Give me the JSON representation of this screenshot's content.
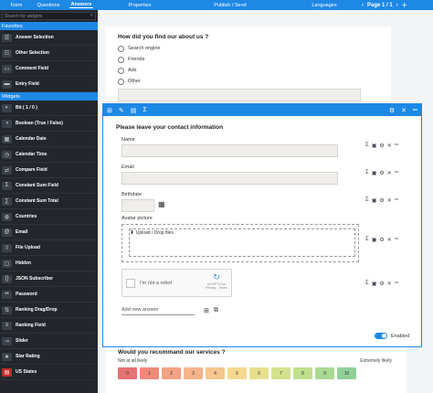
{
  "topnav": {
    "tabs": [
      "Form",
      "Questions",
      "Answers",
      "Properties",
      "Publish / Send",
      "Languages"
    ],
    "active": "Answers",
    "page_label": "Page 1 / 1"
  },
  "sidebar": {
    "search_placeholder": "Search for widgets",
    "favorites_label": "Favorites",
    "favorites": [
      {
        "label": "Answer Selection",
        "icon": "answer-selection-icon"
      },
      {
        "label": "Other Selection",
        "icon": "other-selection-icon"
      },
      {
        "label": "Comment Field",
        "icon": "comment-field-icon"
      },
      {
        "label": "Entry Field",
        "icon": "entry-field-icon"
      }
    ],
    "widgets_label": "Widgets",
    "widgets": [
      {
        "label": "Bit ( 1 / 0 )",
        "icon": "bit-toggle-icon"
      },
      {
        "label": "Boolean (True / False)",
        "icon": "boolean-toggle-icon"
      },
      {
        "label": "Calendar Date",
        "icon": "calendar-icon"
      },
      {
        "label": "Calendar Time",
        "icon": "clock-icon"
      },
      {
        "label": "Compare Field",
        "icon": "compare-icon"
      },
      {
        "label": "Constant Sum Field",
        "icon": "sigma-icon"
      },
      {
        "label": "Constant Sum Total",
        "icon": "sum-total-icon"
      },
      {
        "label": "Countries",
        "icon": "globe-icon"
      },
      {
        "label": "Email",
        "icon": "email-icon"
      },
      {
        "label": "File Upload",
        "icon": "upload-icon"
      },
      {
        "label": "Hidden",
        "icon": "hidden-icon"
      },
      {
        "label": "JSON Subscriber",
        "icon": "json-icon"
      },
      {
        "label": "Password",
        "icon": "password-icon"
      },
      {
        "label": "Ranking Drag/Drop",
        "icon": "ranking-drag-icon"
      },
      {
        "label": "Ranking Field",
        "icon": "ranking-field-icon"
      },
      {
        "label": "Slider",
        "icon": "slider-icon"
      },
      {
        "label": "Star Rating",
        "icon": "star-icon"
      },
      {
        "label": "US States",
        "icon": "us-flag-icon"
      }
    ]
  },
  "question1": {
    "title": "How did you find our about us ?",
    "options": [
      "Search engine",
      "Friends",
      "Ads",
      "Other"
    ]
  },
  "question2": {
    "title": "Please leave your contact information",
    "fields": {
      "name": "Name",
      "email": "Email",
      "birthdate": "Birthdate",
      "avatar": "Avatar picture"
    },
    "upload_text": "Upload / Drop files",
    "recaptcha_label": "I'm not a robot",
    "recaptcha_brand": "reCAPTCHA",
    "recaptcha_terms": "Privacy - Terms",
    "add_answer_placeholder": "Add new answer",
    "enabled_label": "Enabled"
  },
  "question3": {
    "title": "Would you recommand our services ?",
    "low_label": "Not at all likely",
    "high_label": "Extremely likely",
    "scale": [
      "0",
      "1",
      "2",
      "3",
      "4",
      "5",
      "6",
      "7",
      "8",
      "9",
      "10"
    ],
    "colors": [
      "#e57373",
      "#f08a7a",
      "#f3a283",
      "#f6b48d",
      "#f6c590",
      "#f4d88f",
      "#e8e08e",
      "#d4e28d",
      "#bfe08f",
      "#a9d993",
      "#8fd19a"
    ]
  },
  "colors": {
    "accent": "#1e88e5",
    "sidebar_bg": "#23272d"
  }
}
